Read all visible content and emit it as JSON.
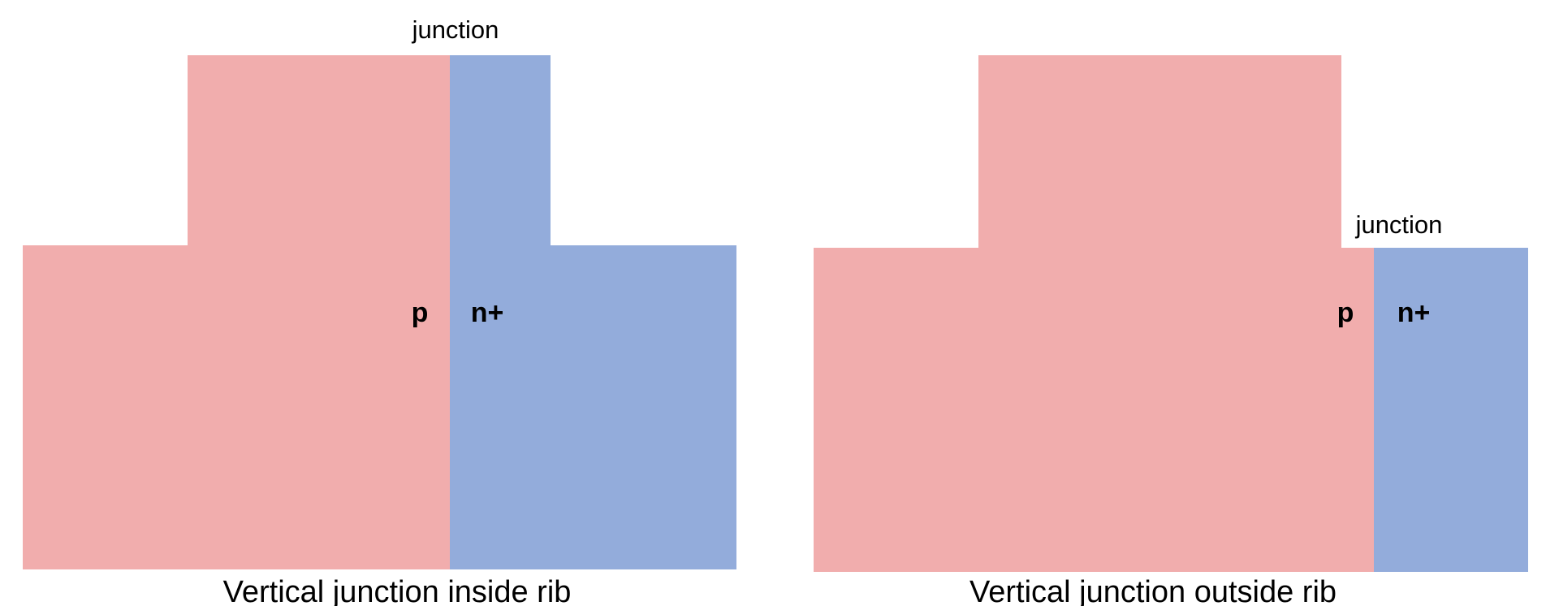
{
  "colors": {
    "p_region": "#f1adad",
    "n_region": "#93acdb",
    "background": "#ffffff"
  },
  "diagrams": [
    {
      "id": "inside",
      "junction_label": "junction",
      "p_label": "p",
      "n_label": "n+",
      "caption": "Vertical junction inside rib"
    },
    {
      "id": "outside",
      "junction_label": "junction",
      "p_label": "p",
      "n_label": "n+",
      "caption": "Vertical junction outside rib"
    }
  ]
}
